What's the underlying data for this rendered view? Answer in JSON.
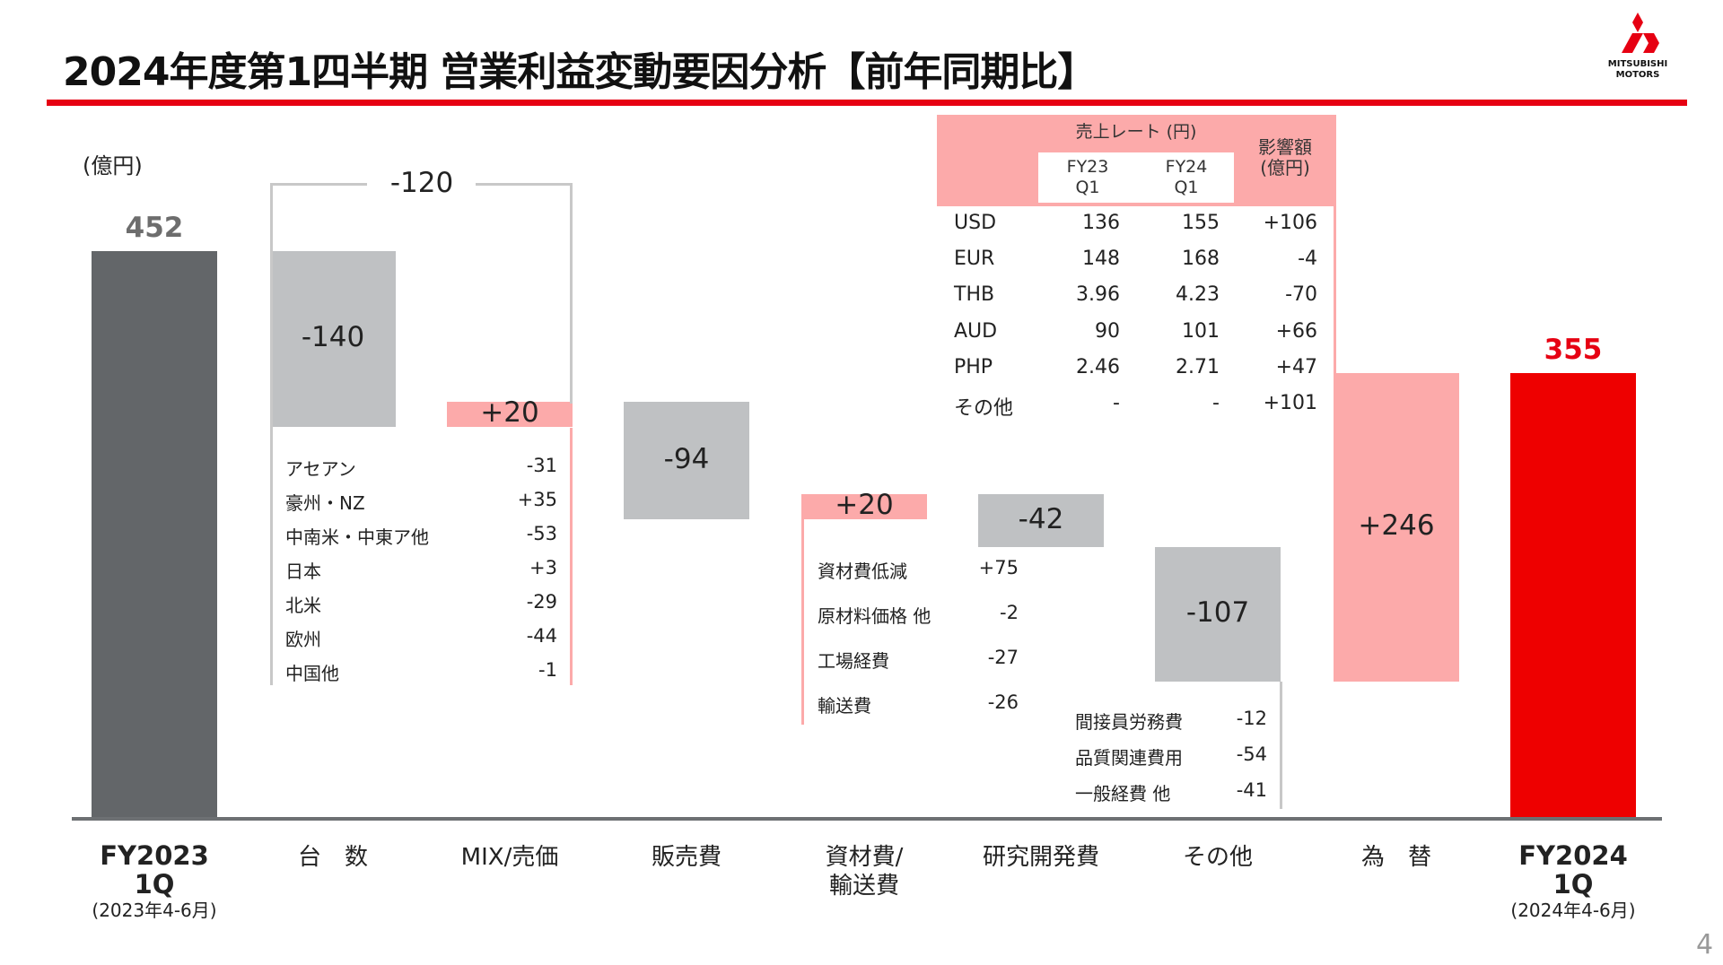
{
  "header": {
    "title": "2024年度第1四半期 営業利益変動要因分析【前年同期比】",
    "logo_text": "MITSUBISHI MOTORS",
    "brand_color": "#e60012"
  },
  "unit_label": "(億円)",
  "page_number": "4",
  "chart_data": {
    "type": "waterfall",
    "ylabel": "(億円)",
    "categories": [
      {
        "lines": [
          "FY2023",
          "1Q"
        ],
        "sub": "(2023年4-6月)",
        "bold": true
      },
      {
        "lines": [
          "台　数"
        ]
      },
      {
        "lines": [
          "MIX/売価"
        ]
      },
      {
        "lines": [
          "販売費"
        ]
      },
      {
        "lines": [
          "資材費/",
          "輸送費"
        ]
      },
      {
        "lines": [
          "研究開発費"
        ]
      },
      {
        "lines": [
          "その他"
        ]
      },
      {
        "lines": [
          "為　替"
        ]
      },
      {
        "lines": [
          "FY2024",
          "1Q"
        ],
        "sub": "(2024年4-6月)",
        "bold": true
      }
    ],
    "bars": [
      {
        "kind": "total",
        "value": 452,
        "label": "452",
        "color": "#636669",
        "label_color": "#6d6d6d"
      },
      {
        "kind": "delta",
        "value": -140,
        "label": "-140",
        "color": "#bfc1c3"
      },
      {
        "kind": "delta",
        "value": 20,
        "label": "+20",
        "color": "#fcaaaa"
      },
      {
        "kind": "delta",
        "value": -94,
        "label": "-94",
        "color": "#bfc1c3"
      },
      {
        "kind": "delta",
        "value": 20,
        "label": "+20",
        "color": "#fcaaaa"
      },
      {
        "kind": "delta",
        "value": -42,
        "label": "-42",
        "color": "#bfc1c3"
      },
      {
        "kind": "delta",
        "value": -107,
        "label": "-107",
        "color": "#bfc1c3"
      },
      {
        "kind": "delta",
        "value": 246,
        "label": "+246",
        "color": "#fcaaaa"
      },
      {
        "kind": "total",
        "value": 355,
        "label": "355",
        "color": "#ee0000",
        "label_color": "#e60012"
      }
    ],
    "bracket": {
      "label": "-120",
      "spans": [
        "台　数",
        "MIX/売価"
      ],
      "value": -120
    },
    "volume_breakdown": [
      {
        "label": "アセアン",
        "value": "-31"
      },
      {
        "label": "豪州・NZ",
        "value": "+35"
      },
      {
        "label": "中南米・中東ア他",
        "value": "-53"
      },
      {
        "label": "日本",
        "value": "+3"
      },
      {
        "label": "北米",
        "value": "-29"
      },
      {
        "label": "欧州",
        "value": "-44"
      },
      {
        "label": "中国他",
        "value": "-1"
      }
    ],
    "material_breakdown": [
      {
        "label": "資材費低減",
        "value": "+75"
      },
      {
        "label": "原材料価格 他",
        "value": "-2"
      },
      {
        "label": "工場経費",
        "value": "-27"
      },
      {
        "label": "輸送費",
        "value": "-26"
      }
    ],
    "other_breakdown": [
      {
        "label": "間接員労務費",
        "value": "-12"
      },
      {
        "label": "品質関連費用",
        "value": "-54"
      },
      {
        "label": "一般経費 他",
        "value": "-41"
      }
    ]
  },
  "fx_table": {
    "rate_header": "売上レート (円)",
    "col_fy23": [
      "FY23",
      "Q1"
    ],
    "col_fy24": [
      "FY24",
      "Q1"
    ],
    "impact_header": [
      "影響額",
      "(億円)"
    ],
    "rows": [
      {
        "currency": "USD",
        "fy23": "136",
        "fy24": "155",
        "impact": "+106"
      },
      {
        "currency": "EUR",
        "fy23": "148",
        "fy24": "168",
        "impact": "-4"
      },
      {
        "currency": "THB",
        "fy23": "3.96",
        "fy24": "4.23",
        "impact": "-70"
      },
      {
        "currency": "AUD",
        "fy23": "90",
        "fy24": "101",
        "impact": "+66"
      },
      {
        "currency": "PHP",
        "fy23": "2.46",
        "fy24": "2.71",
        "impact": "+47"
      },
      {
        "currency": "その他",
        "fy23": "-",
        "fy24": "-",
        "impact": "+101"
      }
    ]
  }
}
